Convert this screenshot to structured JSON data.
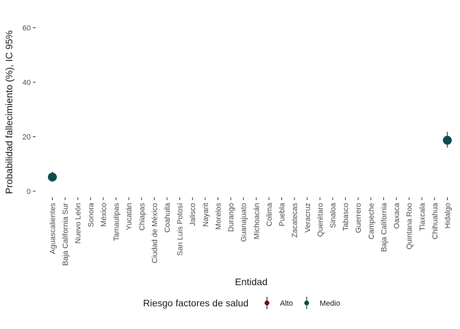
{
  "chart_data": {
    "type": "scatter",
    "xlabel": "Entidad",
    "ylabel": "Probabilidad fallecimiento (%), IC 95%",
    "categories": [
      "Aguascalientes",
      "Baja California Sur",
      "Nuevo León",
      "Sonora",
      "México",
      "Tamaulipas",
      "Yucatán",
      "Chiapas",
      "Ciudad de México",
      "Coahuila",
      "San Luis Potosí",
      "Jalisco",
      "Nayarit",
      "Morelos",
      "Durango",
      "Guanajuato",
      "Michoacán",
      "Colima",
      "Puebla",
      "Zacatecas",
      "Veracruz",
      "Querétaro",
      "Sinaloa",
      "Tabasco",
      "Guerrero",
      "Campeche",
      "Baja California",
      "Oaxaca",
      "Quintana Roo",
      "Tlaxcala",
      "Chihuahua",
      "Hidalgo"
    ],
    "y_ticks": [
      0,
      20,
      40,
      60
    ],
    "ylim": [
      -2,
      65
    ],
    "grid": false,
    "legend_position": "bottom",
    "legend_title": "Riesgo factores de salud",
    "series": [
      {
        "name": "Alto",
        "color": "#6b0f0f",
        "points": []
      },
      {
        "name": "Medio",
        "color": "#0d4d4f",
        "points": [
          {
            "category": "Aguascalientes",
            "y": 5.2,
            "lower": 3.5,
            "upper": 7.2
          },
          {
            "category": "Hidalgo",
            "y": 18.7,
            "lower": 16.0,
            "upper": 21.8
          }
        ]
      }
    ]
  }
}
